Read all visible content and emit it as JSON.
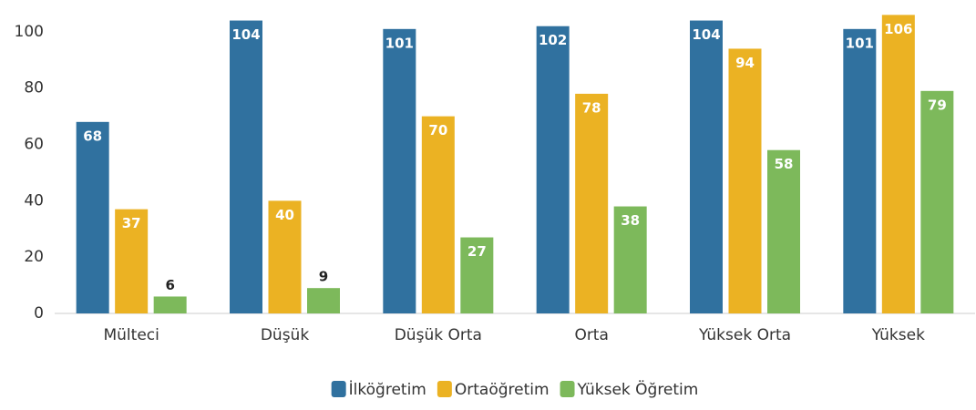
{
  "chart_data": {
    "type": "bar",
    "categories": [
      "Mülteci",
      "Düşük",
      "Düşük Orta",
      "Orta",
      "Yüksek Orta",
      "Yüksek"
    ],
    "series": [
      {
        "name": "İlköğretim",
        "color": "#30719f",
        "values": [
          68,
          104,
          101,
          102,
          104,
          101
        ]
      },
      {
        "name": "Ortaöğretim",
        "color": "#ebb223",
        "values": [
          37,
          40,
          70,
          78,
          94,
          106
        ]
      },
      {
        "name": "Yüksek Öğretim",
        "color": "#7db95b",
        "values": [
          6,
          9,
          27,
          38,
          58,
          79
        ]
      }
    ],
    "ylim": [
      0,
      110
    ],
    "yticks": [
      0,
      20,
      40,
      60,
      80,
      100
    ],
    "grid": false,
    "legend": "bottom"
  }
}
